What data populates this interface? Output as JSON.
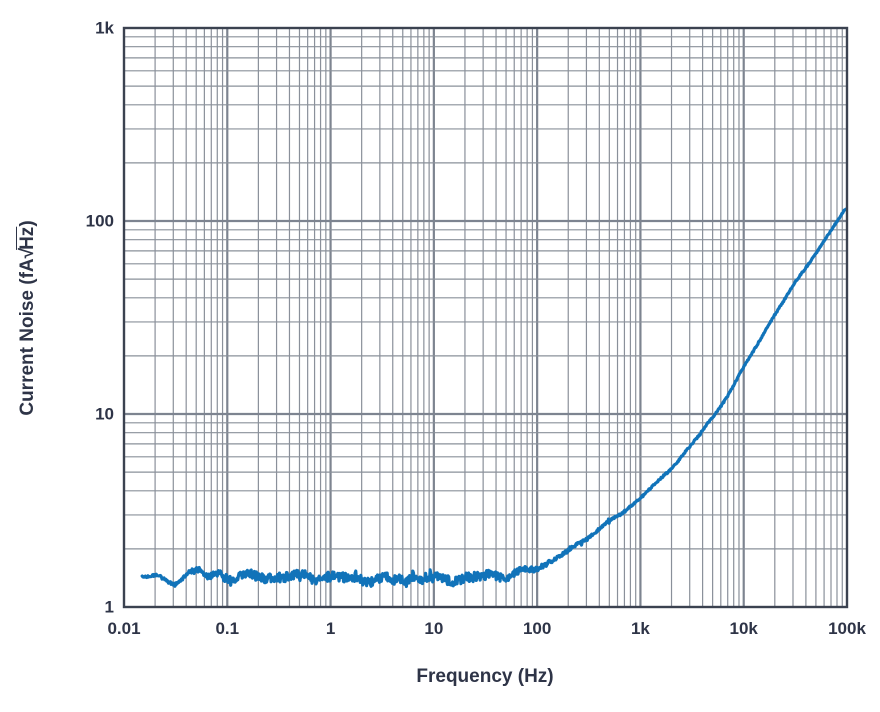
{
  "chart_data": {
    "type": "line",
    "title": "",
    "xlabel": "Frequency (Hz)",
    "ylabel": "Current Noise (fA√Hz)",
    "ylabel_parts": {
      "prefix": "Current Noise (fA",
      "radical": "√",
      "radicand": "Hz",
      "suffix": ")"
    },
    "x_scale": "log",
    "y_scale": "log",
    "xlim": [
      0.01,
      100000
    ],
    "ylim": [
      1,
      1000
    ],
    "x_ticks": [
      {
        "value": 0.01,
        "label": "0.01"
      },
      {
        "value": 0.1,
        "label": "0.1"
      },
      {
        "value": 1,
        "label": "1"
      },
      {
        "value": 10,
        "label": "10"
      },
      {
        "value": 100,
        "label": "100"
      },
      {
        "value": 1000,
        "label": "1k"
      },
      {
        "value": 10000,
        "label": "10k"
      },
      {
        "value": 100000,
        "label": "100k"
      }
    ],
    "y_ticks": [
      {
        "value": 1,
        "label": "1"
      },
      {
        "value": 10,
        "label": "10"
      },
      {
        "value": 100,
        "label": "100"
      },
      {
        "value": 1000,
        "label": "1k"
      }
    ],
    "grid": true,
    "legend": "none",
    "series": [
      {
        "name": "current-noise",
        "color": "#1173b9",
        "start_frequency_hz": 0.015,
        "end_frequency_hz": 100000,
        "anchors_freq_value": [
          [
            0.015,
            1.45
          ],
          [
            0.02,
            1.46
          ],
          [
            0.024,
            1.36
          ],
          [
            0.03,
            1.31
          ],
          [
            0.038,
            1.47
          ],
          [
            0.045,
            1.52
          ],
          [
            0.055,
            1.56
          ],
          [
            0.065,
            1.39
          ],
          [
            0.08,
            1.5
          ],
          [
            0.1,
            1.42
          ],
          [
            0.15,
            1.46
          ],
          [
            0.25,
            1.42
          ],
          [
            0.4,
            1.45
          ],
          [
            0.7,
            1.43
          ],
          [
            1,
            1.42
          ],
          [
            2,
            1.4
          ],
          [
            4,
            1.38
          ],
          [
            7,
            1.41
          ],
          [
            10,
            1.38
          ],
          [
            15,
            1.41
          ],
          [
            20,
            1.39
          ],
          [
            30,
            1.44
          ],
          [
            50,
            1.47
          ],
          [
            70,
            1.5
          ],
          [
            100,
            1.6
          ],
          [
            150,
            1.78
          ],
          [
            200,
            1.95
          ],
          [
            300,
            2.25
          ],
          [
            500,
            2.8
          ],
          [
            700,
            3.1
          ],
          [
            1000,
            3.7
          ],
          [
            1500,
            4.5
          ],
          [
            2000,
            5.2
          ],
          [
            3000,
            6.8
          ],
          [
            5000,
            9.5
          ],
          [
            7000,
            12.5
          ],
          [
            10000,
            17.5
          ],
          [
            15000,
            25
          ],
          [
            20000,
            33
          ],
          [
            30000,
            46
          ],
          [
            50000,
            68
          ],
          [
            70000,
            90
          ],
          [
            100000,
            118
          ]
        ],
        "noise_band_log10": [
          [
            0.015,
            0.004
          ],
          [
            0.04,
            0.008
          ],
          [
            0.09,
            0.02
          ],
          [
            0.15,
            0.024
          ],
          [
            30,
            0.024
          ],
          [
            80,
            0.016
          ],
          [
            150,
            0.01
          ],
          [
            400,
            0.007
          ],
          [
            1500,
            0.005
          ],
          [
            8000,
            0.004
          ],
          [
            100000,
            0.0035
          ]
        ]
      }
    ]
  },
  "colors": {
    "trace": "#1173b9",
    "grid_minor": "#8a909a",
    "grid_major": "#7d8490",
    "border": "#3b4250",
    "text": "#2e3447",
    "background": "#ffffff"
  }
}
